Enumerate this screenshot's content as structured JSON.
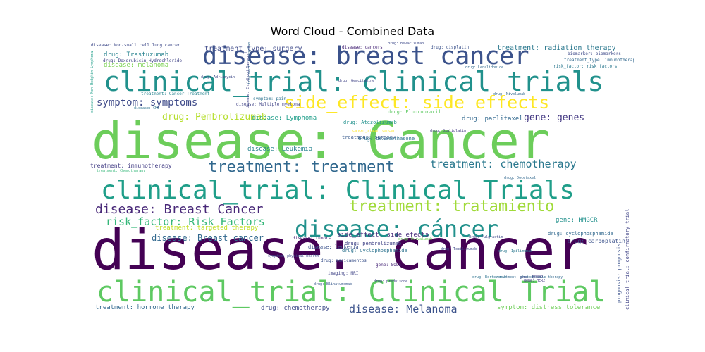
{
  "chart_data": {
    "type": "wordcloud",
    "title": "Word Cloud - Combined Data",
    "words": [
      {
        "text": "disease: cancer",
        "weight": 100,
        "color": "#440154"
      },
      {
        "text": "disease: Cancer",
        "weight": 92,
        "color": "#6ccd5a"
      },
      {
        "text": "clinical_trial: Clinical Trial",
        "weight": 48,
        "color": "#5ec962"
      },
      {
        "text": "clinical_trial: clinical trials",
        "weight": 46,
        "color": "#21918c"
      },
      {
        "text": "clinical_trial: Clinical Trials",
        "weight": 44,
        "color": "#1f9e89"
      },
      {
        "text": "disease: breast cancer",
        "weight": 42,
        "color": "#3b528b"
      },
      {
        "text": "disease: cáncer",
        "weight": 40,
        "color": "#21918c"
      },
      {
        "text": "side_effect: side effects",
        "weight": 34,
        "color": "#fde725"
      },
      {
        "text": "treatment: treatment",
        "weight": 30,
        "color": "#31688e"
      },
      {
        "text": "treatment: tratamiento",
        "weight": 30,
        "color": "#a0da39"
      },
      {
        "text": "disease: Breast Cancer",
        "weight": 24,
        "color": "#482878"
      },
      {
        "text": "risk_factor: Risk Factors",
        "weight": 20,
        "color": "#35b779"
      },
      {
        "text": "treatment: chemotherapy",
        "weight": 20,
        "color": "#2a788e"
      },
      {
        "text": "symptom: symptoms",
        "weight": 19,
        "color": "#3e4a89"
      },
      {
        "text": "disease: Melanoma",
        "weight": 19,
        "color": "#3b528b"
      },
      {
        "text": "drug: Pembrolizumab",
        "weight": 16,
        "color": "#b5de2b"
      },
      {
        "text": "gene: genes",
        "weight": 15,
        "color": "#443983"
      },
      {
        "text": "disease: Breast cancer",
        "weight": 14,
        "color": "#31688e"
      },
      {
        "text": "treatment_type: surgery",
        "weight": 12,
        "color": "#3e4a89"
      },
      {
        "text": "treatment: radiation therapy",
        "weight": 12,
        "color": "#2a788e"
      },
      {
        "text": "drug: Trastuzumab",
        "weight": 11,
        "color": "#26828e"
      },
      {
        "text": "drug: paclitaxel",
        "weight": 11,
        "color": "#31688e"
      },
      {
        "text": "disease: Leukemia",
        "weight": 11,
        "color": "#26828e"
      },
      {
        "text": "disease: Lymphoma",
        "weight": 10,
        "color": "#1f9e89"
      },
      {
        "text": "treatment: hormone therapy",
        "weight": 10,
        "color": "#31688e"
      },
      {
        "text": "drug: chemotherapy",
        "weight": 10,
        "color": "#3e4a89"
      },
      {
        "text": "symptom: distress tolerance",
        "weight": 10,
        "color": "#6ece58"
      },
      {
        "text": "gene: HMGCR",
        "weight": 10,
        "color": "#21918c"
      },
      {
        "text": "disease: melanoma",
        "weight": 10,
        "color": "#7ad151"
      },
      {
        "text": "treatment: immunotherapy",
        "weight": 9,
        "color": "#433e85"
      },
      {
        "text": "treatment: targeted therapy",
        "weight": 9,
        "color": "#c2df23"
      },
      {
        "text": "side_effect: side efects",
        "weight": 9,
        "color": "#472d7b"
      },
      {
        "text": "drug: Fluorouracil",
        "weight": 8,
        "color": "#5ec962"
      },
      {
        "text": "drug: Atezolizumab",
        "weight": 8,
        "color": "#21918c"
      },
      {
        "text": "drug: dexamethasone",
        "weight": 7,
        "color": "#2c728e"
      },
      {
        "text": "treatment: surgery",
        "weight": 7,
        "color": "#38598c"
      },
      {
        "text": "disease: tumors",
        "weight": 7,
        "color": "#482173"
      },
      {
        "text": "disease: leukemia",
        "weight": 7,
        "color": "#3b528b"
      },
      {
        "text": "drug: pembrolizumab",
        "weight": 7,
        "color": "#414487"
      },
      {
        "text": "drug: Cyclophosphamide",
        "weight": 7,
        "color": "#2c728e"
      },
      {
        "text": "drug: cyclophosphamide",
        "weight": 7,
        "color": "#31688e"
      },
      {
        "text": "drug: carboplatin",
        "weight": 7,
        "color": "#3b528b"
      },
      {
        "text": "drug: Doxorubicin Hydrochloride",
        "weight": 7,
        "color": "#414487"
      },
      {
        "text": "drug: cisplatin",
        "weight": 6,
        "color": "#3b528b"
      },
      {
        "text": "disease: cancers",
        "weight": 6,
        "color": "#482878"
      },
      {
        "text": "biomarker: biomarkers",
        "weight": 6,
        "color": "#3e4a89"
      },
      {
        "text": "treatment_type: immunotherapy",
        "weight": 6,
        "color": "#31688e"
      },
      {
        "text": "risk_factor: risk factors",
        "weight": 6,
        "color": "#2a788e"
      },
      {
        "text": "disease: Non-small cell lung cancer",
        "weight": 6,
        "color": "#3e4a89"
      },
      {
        "text": "symptom: pain",
        "weight": 6,
        "color": "#2c728e"
      },
      {
        "text": "disease: Multiple myeloma",
        "weight": 5,
        "color": "#414487"
      },
      {
        "text": "treatment: Cancer Treatment",
        "weight": 5,
        "color": "#26828e"
      },
      {
        "text": "drug: Adriamycin",
        "weight": 5,
        "color": "#3e4a89"
      },
      {
        "text": "disease: CML",
        "weight": 5,
        "color": "#2c728e"
      },
      {
        "text": "treatment: Chemotherapy",
        "weight": 5,
        "color": "#35b779"
      },
      {
        "text": "drug: medicamentos",
        "weight": 6,
        "color": "#3b528b"
      },
      {
        "text": "gene: SOLE",
        "weight": 6,
        "color": "#482878"
      },
      {
        "text": "imaging: MRI",
        "weight": 6,
        "color": "#414487"
      },
      {
        "text": "drug: Fulgrastim",
        "weight": 5,
        "color": "#3e4a89"
      },
      {
        "text": "drug: Ipilimumab",
        "weight": 5,
        "color": "#2a788e"
      },
      {
        "text": "drug: Oxaliplatin",
        "weight": 5,
        "color": "#443983"
      },
      {
        "text": "drug: Durvalumab",
        "weight": 5,
        "color": "#6ece58"
      },
      {
        "text": "gene: ERBB2",
        "weight": 5,
        "color": "#443983"
      },
      {
        "text": "drug: Docetaxel",
        "weight": 5,
        "color": "#31688e"
      },
      {
        "text": "drug: Tocilizumab",
        "weight": 5,
        "color": "#3e4a89"
      },
      {
        "text": "drug: prednisone",
        "weight": 5,
        "color": "#414487"
      },
      {
        "text": "drug: Gemcitabine",
        "weight": 5,
        "color": "#414487"
      },
      {
        "text": "drug: Lenalidomide",
        "weight": 5,
        "color": "#31688e"
      },
      {
        "text": "drug: Bevacizumab",
        "weight": 5,
        "color": "#3e4a89"
      },
      {
        "text": "drug: Nivolumab",
        "weight": 5,
        "color": "#31688e"
      },
      {
        "text": "gene: HER2",
        "weight": 5,
        "color": "#443983"
      },
      {
        "text": "treatment: photodynamic therapy",
        "weight": 5,
        "color": "#31688e"
      },
      {
        "text": "drug: Bortezomib",
        "weight": 5,
        "color": "#2c728e"
      },
      {
        "text": "drug: Blinatumomab",
        "weight": 5,
        "color": "#38598c"
      },
      {
        "text": "clinical_trial: confirmatory trial",
        "weight": 6,
        "color": "#414487"
      },
      {
        "text": "prognosis: prognosis",
        "weight": 6,
        "color": "#3b528b"
      },
      {
        "text": "disease: Non-Hodgkin Lymphoma",
        "weight": 5,
        "color": "#1f9e89"
      },
      {
        "text": "treatment: transplant",
        "weight": 5,
        "color": "#31688e"
      },
      {
        "text": "disease: Childhood Cancers",
        "weight": 5,
        "color": "#414487"
      },
      {
        "text": "symptom: physical health",
        "weight": 5,
        "color": "#3e4a89"
      },
      {
        "text": "cancer_stage: cancer",
        "weight": 5,
        "color": "#fde725"
      }
    ]
  }
}
